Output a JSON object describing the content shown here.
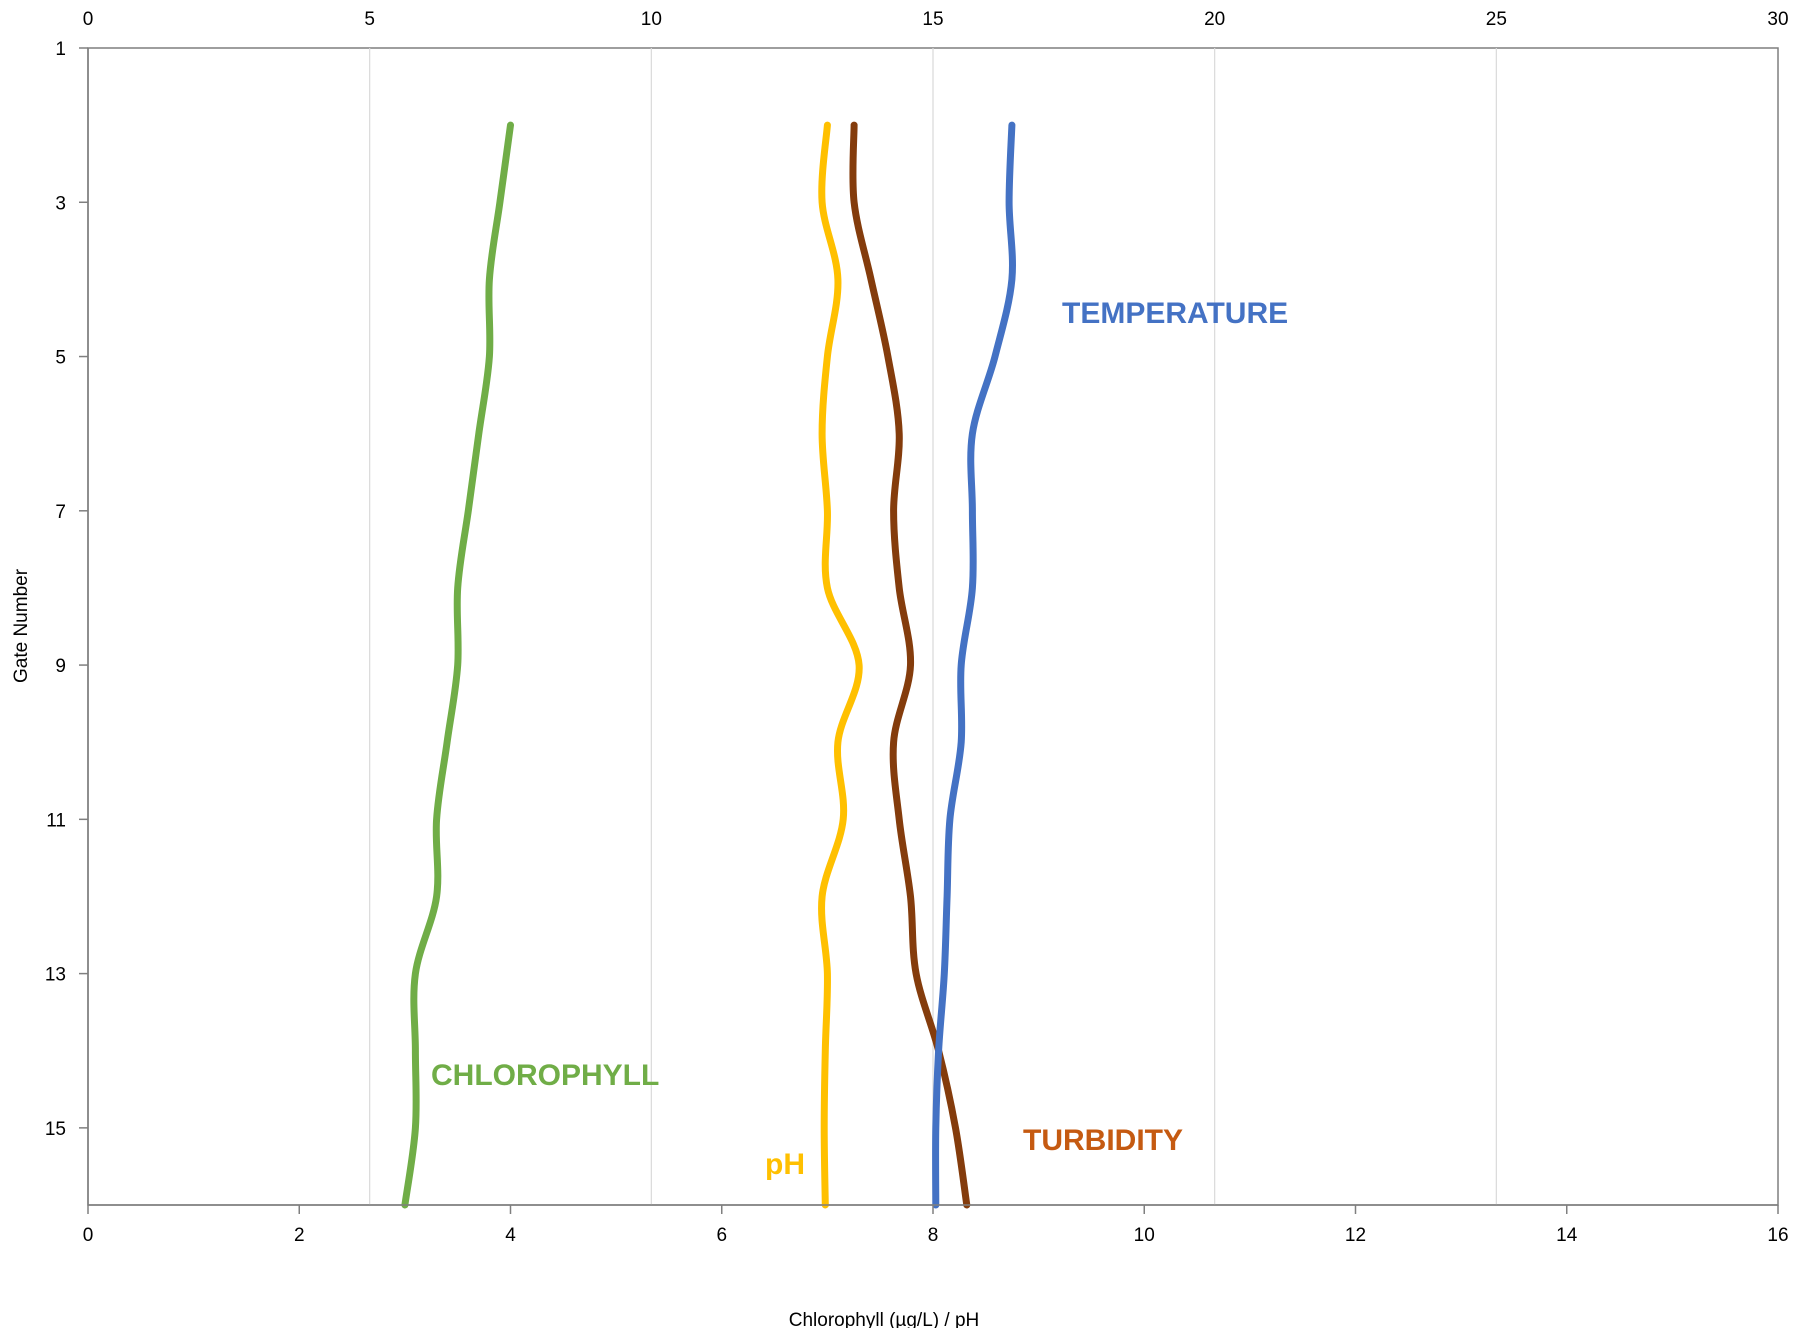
{
  "chart_data": {
    "type": "line",
    "orientation": "vertical-profile",
    "y_axis": {
      "label": "Gate Number",
      "range": [
        1,
        16
      ],
      "inverted": true,
      "ticks": [
        1,
        3,
        5,
        7,
        9,
        11,
        13,
        15
      ]
    },
    "x_axis_bottom": {
      "label": "Chlorophyll (µg/L)  /  pH",
      "range": [
        0,
        16
      ],
      "ticks": [
        0,
        2,
        4,
        6,
        8,
        10,
        12,
        14,
        16
      ]
    },
    "x_axis_top": {
      "label": "",
      "range": [
        0,
        30
      ],
      "ticks": [
        0,
        5,
        10,
        15,
        20,
        25,
        30
      ],
      "gridlines": true
    },
    "grid": true,
    "legend": "none",
    "series": [
      {
        "name": "CHLOROPHYLL",
        "axis": "bottom",
        "color": "#70ad47",
        "points": [
          [
            4.0,
            2
          ],
          [
            3.9,
            3
          ],
          [
            3.8,
            4
          ],
          [
            3.8,
            5
          ],
          [
            3.7,
            6
          ],
          [
            3.6,
            7
          ],
          [
            3.5,
            8
          ],
          [
            3.5,
            9
          ],
          [
            3.4,
            10
          ],
          [
            3.3,
            11
          ],
          [
            3.3,
            12
          ],
          [
            3.1,
            13
          ],
          [
            3.1,
            14
          ],
          [
            3.1,
            15
          ],
          [
            3.0,
            16
          ]
        ]
      },
      {
        "name": "pH",
        "axis": "bottom",
        "color": "#ffc000",
        "points": [
          [
            7.0,
            2
          ],
          [
            6.95,
            3
          ],
          [
            7.1,
            4
          ],
          [
            7.0,
            5
          ],
          [
            6.95,
            6
          ],
          [
            7.0,
            7
          ],
          [
            7.0,
            8
          ],
          [
            7.3,
            9
          ],
          [
            7.1,
            10
          ],
          [
            7.15,
            11
          ],
          [
            6.95,
            12
          ],
          [
            7.0,
            13
          ],
          [
            6.98,
            14
          ],
          [
            6.97,
            15
          ],
          [
            6.98,
            16
          ]
        ]
      },
      {
        "name": "TURBIDITY",
        "axis": "top",
        "color": "#843c0c",
        "points": [
          [
            13.6,
            2
          ],
          [
            13.6,
            3
          ],
          [
            13.9,
            4
          ],
          [
            14.2,
            5
          ],
          [
            14.4,
            6
          ],
          [
            14.3,
            7
          ],
          [
            14.4,
            8
          ],
          [
            14.6,
            9
          ],
          [
            14.3,
            10
          ],
          [
            14.4,
            11
          ],
          [
            14.6,
            12
          ],
          [
            14.7,
            13
          ],
          [
            15.1,
            14
          ],
          [
            15.4,
            15
          ],
          [
            15.6,
            16
          ]
        ]
      },
      {
        "name": "TEMPERATURE",
        "axis": "top",
        "color": "#4472c4",
        "points": [
          [
            16.4,
            2
          ],
          [
            16.35,
            3
          ],
          [
            16.4,
            4
          ],
          [
            16.1,
            5
          ],
          [
            15.7,
            6
          ],
          [
            15.7,
            7
          ],
          [
            15.7,
            8
          ],
          [
            15.5,
            9
          ],
          [
            15.5,
            10
          ],
          [
            15.3,
            11
          ],
          [
            15.25,
            12
          ],
          [
            15.2,
            13
          ],
          [
            15.1,
            14
          ],
          [
            15.05,
            15
          ],
          [
            15.05,
            16
          ]
        ]
      }
    ],
    "annotations": [
      {
        "text": "TEMPERATURE",
        "color": "#4472c4"
      },
      {
        "text": "CHLOROPHYLL",
        "color": "#70ad47"
      },
      {
        "text": "TURBIDITY",
        "color": "#c55a11"
      },
      {
        "text": "pH",
        "color": "#ffc000"
      }
    ]
  }
}
